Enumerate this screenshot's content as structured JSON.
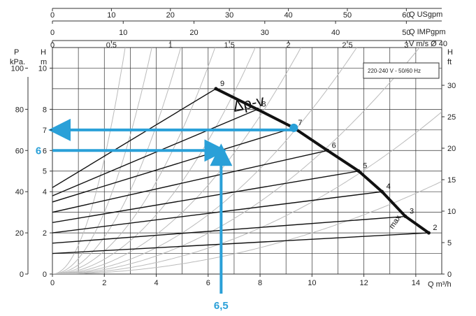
{
  "chart_data": {
    "type": "line",
    "x_axis": {
      "unit": "Q m³/h",
      "range": [
        0,
        15
      ],
      "ticks": [
        0,
        2,
        4,
        6,
        8,
        10,
        12,
        14
      ]
    },
    "y_axis_H": {
      "unit": "H m",
      "range": [
        0,
        11
      ],
      "ticks": [
        0,
        2,
        4,
        5,
        6,
        7,
        8,
        10
      ]
    },
    "y_axis_P": {
      "unit": "P kPa.",
      "range": [
        0,
        110
      ],
      "ticks": [
        0,
        20,
        40,
        60,
        80,
        100
      ]
    },
    "y_axis_ft": {
      "unit": "H ft",
      "range": [
        0,
        36
      ],
      "ticks": [
        0,
        5,
        10,
        15,
        20,
        25,
        30
      ]
    },
    "top_axis_usgpm": {
      "unit": "Q USgpm",
      "ticks": [
        0,
        10,
        20,
        30,
        40,
        50,
        60
      ]
    },
    "top_axis_impgpm": {
      "unit": "Q IMPgpm",
      "ticks": [
        0,
        10,
        20,
        30,
        40,
        50
      ]
    },
    "top_axis_velocity": {
      "unit": "V m/s Ø 40",
      "ticks": [
        "0",
        "0,5",
        "1",
        "1,5",
        "2",
        "2,5",
        "3"
      ]
    },
    "box_label": "220-240 V - 50/60 Hz",
    "curve_label": "Δp-v",
    "max_label": "max",
    "control_curve": {
      "name": "Δp-v",
      "points": [
        {
          "label": "9",
          "q": 6.3,
          "h": 9.0
        },
        {
          "label": "8",
          "q": 7.9,
          "h": 8.0
        },
        {
          "label": "7",
          "q": 9.3,
          "h": 7.1
        },
        {
          "label": "6",
          "q": 10.6,
          "h": 6.0
        },
        {
          "label": "5",
          "q": 11.8,
          "h": 5.0
        },
        {
          "label": "4",
          "q": 12.7,
          "h": 4.0
        },
        {
          "label": "3",
          "q": 13.6,
          "h": 2.8
        },
        {
          "label": "2",
          "q": 14.5,
          "h": 2.0
        }
      ]
    },
    "setting_lines": [
      {
        "label": "9",
        "h0": 4.2,
        "q": 6.3,
        "h": 9.0
      },
      {
        "label": "8",
        "h0": 3.8,
        "q": 7.9,
        "h": 8.0
      },
      {
        "label": "7",
        "h0": 3.5,
        "q": 9.3,
        "h": 7.1
      },
      {
        "label": "6",
        "h0": 3.0,
        "q": 10.6,
        "h": 6.0
      },
      {
        "label": "5",
        "h0": 2.5,
        "q": 11.8,
        "h": 5.0
      },
      {
        "label": "4",
        "h0": 2.0,
        "q": 12.7,
        "h": 4.0
      },
      {
        "label": "3",
        "h0": 1.5,
        "q": 13.6,
        "h": 2.8
      },
      {
        "label": "2",
        "h0": 1.0,
        "q": 14.5,
        "h": 2.0
      }
    ],
    "example": {
      "flow_label": "6,5",
      "flow": 6.5,
      "head_label": "6",
      "head": 6.0,
      "setting_head": 7.0,
      "operating_point": {
        "q": 9.3,
        "h": 7.1
      }
    }
  }
}
